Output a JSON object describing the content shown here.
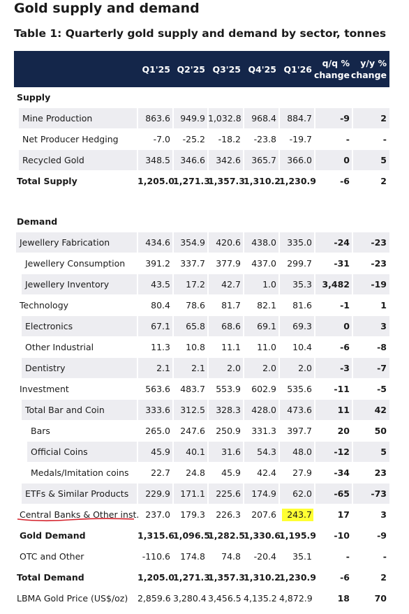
{
  "header": {
    "title": "Gold supply and demand",
    "subtitle": "Table 1: Quarterly gold supply and demand by sector, tonnes"
  },
  "table": {
    "columns": [
      "Q1'25",
      "Q2'25",
      "Q3'25",
      "Q4'25",
      "Q1'26",
      "q/q % change",
      "y/y % change"
    ],
    "rows": [
      {
        "label": "Supply"
      },
      {
        "label": "Mine Production",
        "cells": [
          "863.6",
          "949.9",
          "1,032.8",
          "968.4",
          "884.7",
          "-9",
          "2"
        ]
      },
      {
        "label": "Net Producer Hedging",
        "cells": [
          "-7.0",
          "-25.2",
          "-18.2",
          "-23.8",
          "-19.7",
          "-",
          "-"
        ]
      },
      {
        "label": "Recycled Gold",
        "cells": [
          "348.5",
          "346.6",
          "342.6",
          "365.7",
          "366.0",
          "0",
          "5"
        ]
      },
      {
        "label": "Total Supply",
        "cells": [
          "1,205.0",
          "1,271.3",
          "1,357.3",
          "1,310.2",
          "1,230.9",
          "-6",
          "2"
        ]
      },
      {
        "label": "Demand"
      },
      {
        "label": "Jewellery Fabrication",
        "cells": [
          "434.6",
          "354.9",
          "420.6",
          "438.0",
          "335.0",
          "-24",
          "-23"
        ]
      },
      {
        "label": "Jewellery Consumption",
        "cells": [
          "391.2",
          "337.7",
          "377.9",
          "437.0",
          "299.7",
          "-31",
          "-23"
        ]
      },
      {
        "label": "Jewellery Inventory",
        "cells": [
          "43.5",
          "17.2",
          "42.7",
          "1.0",
          "35.3",
          "3,482",
          "-19"
        ]
      },
      {
        "label": "Technology",
        "cells": [
          "80.4",
          "78.6",
          "81.7",
          "82.1",
          "81.6",
          "-1",
          "1"
        ]
      },
      {
        "label": "Electronics",
        "cells": [
          "67.1",
          "65.8",
          "68.6",
          "69.1",
          "69.3",
          "0",
          "3"
        ]
      },
      {
        "label": "Other Industrial",
        "cells": [
          "11.3",
          "10.8",
          "11.1",
          "11.0",
          "10.4",
          "-6",
          "-8"
        ]
      },
      {
        "label": "Dentistry",
        "cells": [
          "2.1",
          "2.1",
          "2.0",
          "2.0",
          "2.0",
          "-3",
          "-7"
        ]
      },
      {
        "label": "Investment",
        "cells": [
          "563.6",
          "483.7",
          "553.9",
          "602.9",
          "535.6",
          "-11",
          "-5"
        ]
      },
      {
        "label": "Total Bar and Coin",
        "cells": [
          "333.6",
          "312.5",
          "328.3",
          "428.0",
          "473.6",
          "11",
          "42"
        ]
      },
      {
        "label": "Bars",
        "cells": [
          "265.0",
          "247.6",
          "250.9",
          "331.3",
          "397.7",
          "20",
          "50"
        ]
      },
      {
        "label": "Official Coins",
        "cells": [
          "45.9",
          "40.1",
          "31.6",
          "54.3",
          "48.0",
          "-12",
          "5"
        ]
      },
      {
        "label": "Medals/Imitation coins",
        "cells": [
          "22.7",
          "24.8",
          "45.9",
          "42.4",
          "27.9",
          "-34",
          "23"
        ]
      },
      {
        "label": "ETFs & Similar Products",
        "cells": [
          "229.9",
          "171.1",
          "225.6",
          "174.9",
          "62.0",
          "-65",
          "-73"
        ]
      },
      {
        "label": "Central Banks & Other inst.",
        "cells": [
          "237.0",
          "179.3",
          "226.3",
          "207.6",
          "243.7",
          "17",
          "3"
        ]
      },
      {
        "label": "Gold Demand",
        "cells": [
          "1,315.6",
          "1,096.5",
          "1,282.5",
          "1,330.6",
          "1,195.9",
          "-10",
          "-9"
        ]
      },
      {
        "label": "OTC and Other",
        "cells": [
          "-110.6",
          "174.8",
          "74.8",
          "-20.4",
          "35.1",
          "-",
          "-"
        ]
      },
      {
        "label": "Total Demand",
        "cells": [
          "1,205.0",
          "1,271.3",
          "1,357.3",
          "1,310.2",
          "1,230.9",
          "-6",
          "2"
        ]
      },
      {
        "label": "LBMA Gold Price (US$/oz)",
        "cells": [
          "2,859.6",
          "3,280.4",
          "3,456.5",
          "4,135.2",
          "4,872.9",
          "18",
          "70"
        ]
      }
    ]
  }
}
